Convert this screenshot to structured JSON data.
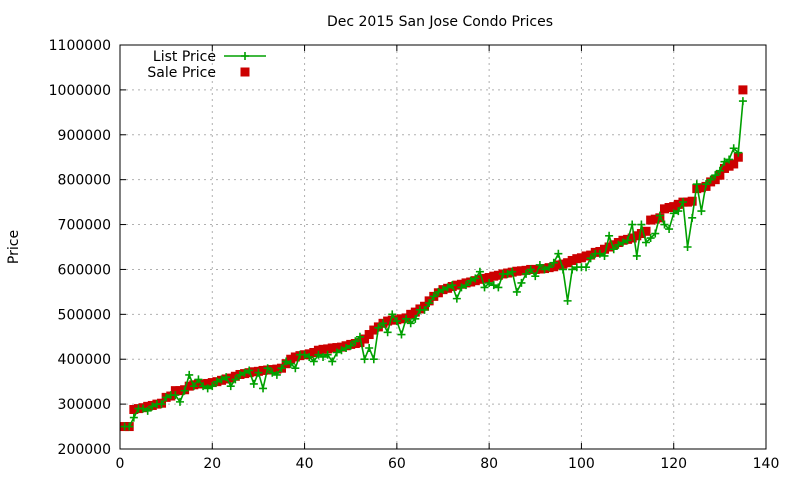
{
  "chart_data": {
    "type": "line",
    "title": "Dec 2015 San Jose Condo Prices",
    "xlabel": "",
    "ylabel": "Price",
    "xlim": [
      0,
      140
    ],
    "ylim": [
      200000,
      1100000
    ],
    "grid": true,
    "legend_position": "top-left",
    "x_ticks": [
      0,
      20,
      40,
      60,
      80,
      100,
      120,
      140
    ],
    "y_ticks": [
      200000,
      300000,
      400000,
      500000,
      600000,
      700000,
      800000,
      900000,
      1000000,
      1100000
    ],
    "series": [
      {
        "name": "List Price",
        "style": "line-with-plus-markers",
        "color": "#00a000",
        "x": [
          1,
          2,
          3,
          4,
          5,
          6,
          7,
          8,
          9,
          10,
          11,
          12,
          13,
          14,
          15,
          16,
          17,
          18,
          19,
          20,
          21,
          22,
          23,
          24,
          25,
          26,
          27,
          28,
          29,
          30,
          31,
          32,
          33,
          34,
          35,
          36,
          37,
          38,
          39,
          40,
          41,
          42,
          43,
          44,
          45,
          46,
          47,
          48,
          49,
          50,
          51,
          52,
          53,
          54,
          55,
          56,
          57,
          58,
          59,
          60,
          61,
          62,
          63,
          64,
          65,
          66,
          67,
          68,
          69,
          70,
          71,
          72,
          73,
          74,
          75,
          76,
          77,
          78,
          79,
          80,
          81,
          82,
          83,
          84,
          85,
          86,
          87,
          88,
          89,
          90,
          91,
          92,
          93,
          94,
          95,
          96,
          97,
          98,
          99,
          100,
          101,
          102,
          103,
          104,
          105,
          106,
          107,
          108,
          109,
          110,
          111,
          112,
          113,
          114,
          115,
          116,
          117,
          118,
          119,
          120,
          121,
          122,
          123,
          124,
          125,
          126,
          127,
          128,
          129,
          130,
          131,
          132,
          133,
          134,
          135
        ],
        "y": [
          250000,
          250000,
          270000,
          290000,
          290000,
          285000,
          295000,
          300000,
          300000,
          315000,
          320000,
          320000,
          305000,
          330000,
          365000,
          340000,
          355000,
          340000,
          335000,
          340000,
          350000,
          355000,
          360000,
          340000,
          355000,
          365000,
          370000,
          375000,
          345000,
          370000,
          335000,
          380000,
          370000,
          365000,
          380000,
          395000,
          390000,
          380000,
          410000,
          410000,
          405000,
          395000,
          410000,
          405000,
          410000,
          395000,
          415000,
          420000,
          425000,
          430000,
          440000,
          450000,
          400000,
          425000,
          400000,
          470000,
          480000,
          460000,
          500000,
          485000,
          455000,
          490000,
          480000,
          490000,
          510000,
          510000,
          525000,
          540000,
          550000,
          555000,
          560000,
          565000,
          535000,
          560000,
          565000,
          575000,
          580000,
          595000,
          560000,
          570000,
          565000,
          560000,
          590000,
          590000,
          595000,
          550000,
          570000,
          590000,
          600000,
          585000,
          610000,
          600000,
          605000,
          615000,
          635000,
          600000,
          530000,
          600000,
          605000,
          605000,
          605000,
          625000,
          635000,
          635000,
          630000,
          675000,
          645000,
          655000,
          660000,
          665000,
          700000,
          630000,
          700000,
          660000,
          670000,
          680000,
          720000,
          700000,
          690000,
          725000,
          730000,
          750000,
          650000,
          715000,
          790000,
          730000,
          790000,
          800000,
          810000,
          820000,
          840000,
          845000,
          870000,
          860000,
          975000
        ]
      },
      {
        "name": "Sale Price",
        "style": "square-markers",
        "color": "#cc0000",
        "x": [
          1,
          2,
          3,
          4,
          5,
          6,
          7,
          8,
          9,
          10,
          11,
          12,
          13,
          14,
          15,
          16,
          17,
          18,
          19,
          20,
          21,
          22,
          23,
          24,
          25,
          26,
          27,
          28,
          29,
          30,
          31,
          32,
          33,
          34,
          35,
          36,
          37,
          38,
          39,
          40,
          41,
          42,
          43,
          44,
          45,
          46,
          47,
          48,
          49,
          50,
          51,
          52,
          53,
          54,
          55,
          56,
          57,
          58,
          59,
          60,
          61,
          62,
          63,
          64,
          65,
          66,
          67,
          68,
          69,
          70,
          71,
          72,
          73,
          74,
          75,
          76,
          77,
          78,
          79,
          80,
          81,
          82,
          83,
          84,
          85,
          86,
          87,
          88,
          89,
          90,
          91,
          92,
          93,
          94,
          95,
          96,
          97,
          98,
          99,
          100,
          101,
          102,
          103,
          104,
          105,
          106,
          107,
          108,
          109,
          110,
          111,
          112,
          113,
          114,
          115,
          116,
          117,
          118,
          119,
          120,
          121,
          122,
          123,
          124,
          125,
          126,
          127,
          128,
          129,
          130,
          131,
          132,
          133,
          134,
          135
        ],
        "y": [
          250000,
          250000,
          288000,
          290000,
          292000,
          295000,
          297000,
          300000,
          302000,
          315000,
          318000,
          330000,
          330000,
          332000,
          340000,
          343000,
          345000,
          345000,
          346000,
          348000,
          350000,
          353000,
          356000,
          358000,
          362000,
          366000,
          368000,
          370000,
          372000,
          373000,
          375000,
          376000,
          377000,
          378000,
          380000,
          390000,
          400000,
          405000,
          408000,
          410000,
          412000,
          415000,
          420000,
          422000,
          423000,
          425000,
          426000,
          427000,
          430000,
          433000,
          435000,
          437000,
          445000,
          455000,
          465000,
          472000,
          480000,
          485000,
          487000,
          488000,
          490000,
          492000,
          500000,
          505000,
          512000,
          518000,
          530000,
          540000,
          548000,
          555000,
          558000,
          562000,
          565000,
          567000,
          570000,
          572000,
          575000,
          578000,
          580000,
          582000,
          585000,
          587000,
          590000,
          592000,
          594000,
          596000,
          597000,
          598000,
          600000,
          600000,
          601000,
          602000,
          604000,
          606000,
          610000,
          612000,
          615000,
          620000,
          624000,
          626000,
          630000,
          632000,
          638000,
          640000,
          645000,
          650000,
          655000,
          660000,
          665000,
          667000,
          670000,
          675000,
          680000,
          685000,
          710000,
          712000,
          715000,
          735000,
          738000,
          740000,
          745000,
          750000,
          750000,
          752000,
          780000,
          782000,
          785000,
          795000,
          800000,
          810000,
          825000,
          830000,
          835000,
          850000,
          1000000
        ]
      }
    ]
  }
}
